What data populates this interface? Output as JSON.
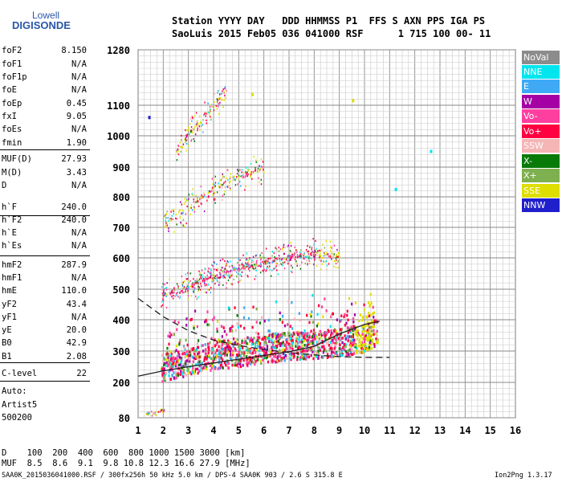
{
  "logo": {
    "line1": "Lowell",
    "line2": "DIGISONDE"
  },
  "header": {
    "line1": "Station YYYY DAY   DDD HHMMSS P1  FFS S AXN PPS IGA PS",
    "line2": "SaoLuis 2015 Feb05 036 041000 RSF      1 715 100 00- 11"
  },
  "params": [
    {
      "name": "foF2",
      "value": "8.150"
    },
    {
      "name": "foF1",
      "value": "N/A"
    },
    {
      "name": "foF1p",
      "value": "N/A"
    },
    {
      "name": "foE",
      "value": "N/A"
    },
    {
      "name": "foEp",
      "value": "0.45"
    },
    {
      "name": "fxI",
      "value": "9.05"
    },
    {
      "name": "foEs",
      "value": "N/A"
    },
    {
      "name": "fmin",
      "value": "1.90"
    },
    {
      "name": "MUF(D)",
      "value": "27.93"
    },
    {
      "name": "M(D)",
      "value": "3.43"
    },
    {
      "name": "D",
      "value": "N/A"
    },
    {
      "name": "h`F",
      "value": "240.0"
    },
    {
      "name": "h`F2",
      "value": "240.0"
    },
    {
      "name": "h`E",
      "value": "N/A"
    },
    {
      "name": "h`Es",
      "value": "N/A"
    },
    {
      "name": "hmF2",
      "value": "287.9"
    },
    {
      "name": "hmF1",
      "value": "N/A"
    },
    {
      "name": "hmE",
      "value": "110.0"
    },
    {
      "name": "yF2",
      "value": "43.4"
    },
    {
      "name": "yF1",
      "value": "N/A"
    },
    {
      "name": "yE",
      "value": "20.0"
    },
    {
      "name": "B0",
      "value": "42.9"
    },
    {
      "name": "B1",
      "value": "2.08"
    },
    {
      "name": "C-level",
      "value": "22"
    }
  ],
  "autoscaling": {
    "line1": "Auto:",
    "line2": "Artist5",
    "line3": "500200"
  },
  "legend": [
    {
      "label": "NoVal",
      "bg": "#8c8c8c"
    },
    {
      "label": "NNE",
      "bg": "#00e5ee"
    },
    {
      "label": "E",
      "bg": "#3fa9f5"
    },
    {
      "label": "W",
      "bg": "#a500a5"
    },
    {
      "label": "Vo-",
      "bg": "#ff3fa0"
    },
    {
      "label": "Vo+",
      "bg": "#ff0040"
    },
    {
      "label": "SSW",
      "bg": "#f4b5b5"
    },
    {
      "label": "X-",
      "bg": "#087a08"
    },
    {
      "label": "X+",
      "bg": "#7fb04f"
    },
    {
      "label": "SSE",
      "bg": "#dede00"
    },
    {
      "label": "NNW",
      "bg": "#1f1fcc"
    }
  ],
  "footer": {
    "d_row": "D    100  200  400  600  800 1000 1500 3000 [km]",
    "muf_row": "MUF  8.5  8.6  9.1  9.8 10.8 12.3 16.6 27.9 [MHz]",
    "info": "SAA0K_2015036041000.RSF / 300fx256h 50 kHz 5.0 km / DPS-4 SAA0K 903 / 2.6 S 315.8 E",
    "version": "Ion2Png 1.3.17"
  },
  "chart_data": {
    "type": "scatter",
    "x_ticks": [
      1,
      2,
      3,
      4,
      5,
      6,
      7,
      8,
      9,
      10,
      11,
      12,
      13,
      14,
      15,
      16
    ],
    "y_ticks": [
      80,
      200,
      300,
      400,
      500,
      600,
      700,
      800,
      900,
      1000,
      1100,
      1280
    ],
    "xlim": [
      1,
      16
    ],
    "ylim": [
      80,
      1280
    ],
    "grid": true,
    "traces": [
      {
        "name": "o-trace F2 (1st hop)",
        "points": [
          [
            1.9,
            250
          ],
          [
            3,
            272
          ],
          [
            4,
            290
          ],
          [
            5,
            298
          ],
          [
            6,
            310
          ],
          [
            7,
            320
          ],
          [
            8,
            325
          ],
          [
            9,
            330
          ],
          [
            9.5,
            338
          ],
          [
            10,
            345
          ],
          [
            10.5,
            370
          ]
        ]
      },
      {
        "name": "2nd hop",
        "points": [
          [
            1.9,
            480
          ],
          [
            3,
            510
          ],
          [
            4,
            545
          ],
          [
            5,
            570
          ],
          [
            6,
            590
          ],
          [
            7,
            605
          ],
          [
            8,
            612
          ],
          [
            9,
            605
          ]
        ]
      },
      {
        "name": "3rd hop",
        "points": [
          [
            2,
            720
          ],
          [
            3,
            770
          ],
          [
            4,
            830
          ],
          [
            5,
            870
          ],
          [
            6,
            900
          ]
        ]
      },
      {
        "name": "4th hop",
        "points": [
          [
            2.5,
            950
          ],
          [
            3,
            1010
          ],
          [
            3.5,
            1050
          ],
          [
            4,
            1100
          ],
          [
            4.5,
            1150
          ]
        ]
      },
      {
        "name": "E region echoes",
        "points": [
          [
            1.3,
            95
          ],
          [
            1.6,
            100
          ],
          [
            1.9,
            105
          ],
          [
            2.1,
            110
          ]
        ]
      }
    ],
    "profile_solid": [
      [
        1,
        220
      ],
      [
        2,
        237
      ],
      [
        3,
        250
      ],
      [
        4,
        262
      ],
      [
        5,
        274
      ],
      [
        6,
        286
      ],
      [
        7,
        298
      ],
      [
        8,
        315
      ],
      [
        9,
        355
      ],
      [
        10,
        385
      ],
      [
        10.6,
        395
      ]
    ],
    "profile_dashed": [
      [
        1,
        470
      ],
      [
        2,
        410
      ],
      [
        3,
        365
      ],
      [
        4,
        335
      ],
      [
        5,
        318
      ],
      [
        6,
        305
      ],
      [
        7,
        295
      ],
      [
        8,
        288
      ],
      [
        9,
        282
      ],
      [
        10,
        280
      ],
      [
        11,
        280
      ]
    ]
  }
}
